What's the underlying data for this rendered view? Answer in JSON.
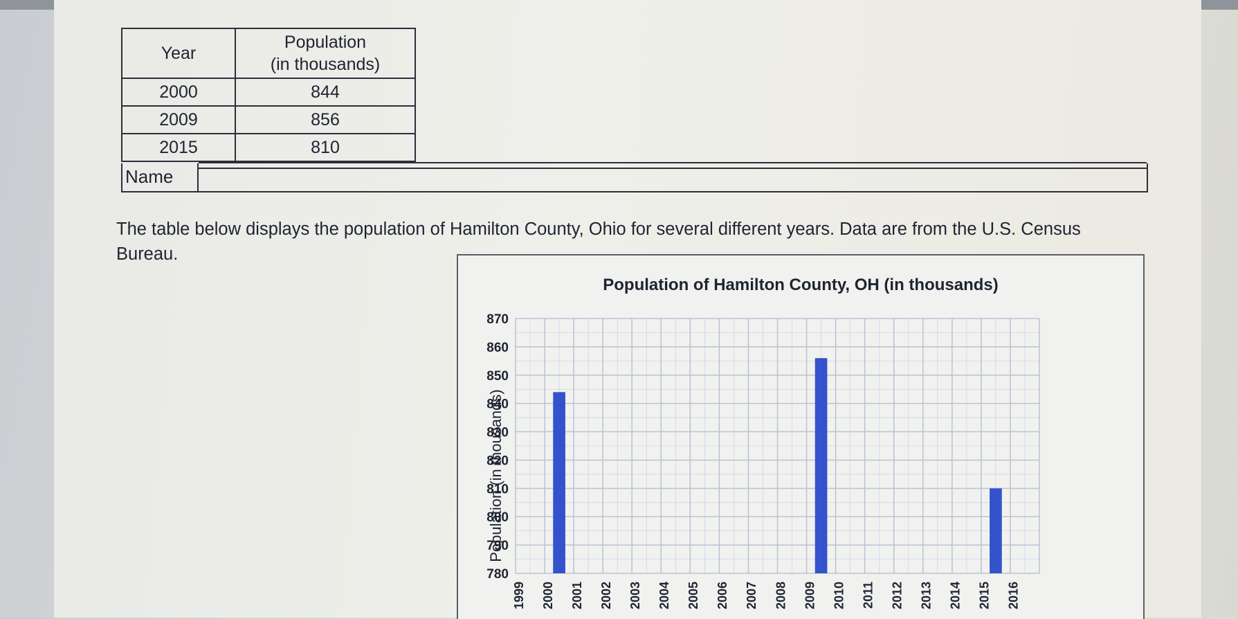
{
  "table": {
    "headers": [
      "Year",
      "Population (in thousands)"
    ],
    "header_lines": [
      "Population",
      "(in thousands)"
    ],
    "rows": [
      {
        "year": "2000",
        "population": "844"
      },
      {
        "year": "2009",
        "population": "856"
      },
      {
        "year": "2015",
        "population": "810"
      }
    ]
  },
  "name_label": "Name",
  "intro_text": "The table below displays the population of Hamilton County, Ohio for several different years. Data are from the U.S. Census Bureau.",
  "colors": {
    "bar": "#3352cc",
    "grid": "#b9c2d3"
  },
  "chart_data": {
    "type": "bar",
    "title": "Population of Hamilton County, OH (in thousands)",
    "xlabel": "",
    "ylabel": "Population (in thousands)",
    "x_ticks": [
      "1999",
      "2000",
      "2001",
      "2002",
      "2003",
      "2004",
      "2005",
      "2006",
      "2007",
      "2008",
      "2009",
      "2010",
      "2011",
      "2012",
      "2013",
      "2014",
      "2015",
      "2016"
    ],
    "y_ticks": [
      780,
      790,
      800,
      810,
      820,
      830,
      840,
      850,
      860,
      870
    ],
    "ylim": [
      780,
      870
    ],
    "xlim": [
      1999,
      2016
    ],
    "grid": true,
    "categories": [
      "2000",
      "2009",
      "2015"
    ],
    "values": [
      844,
      856,
      810
    ]
  }
}
